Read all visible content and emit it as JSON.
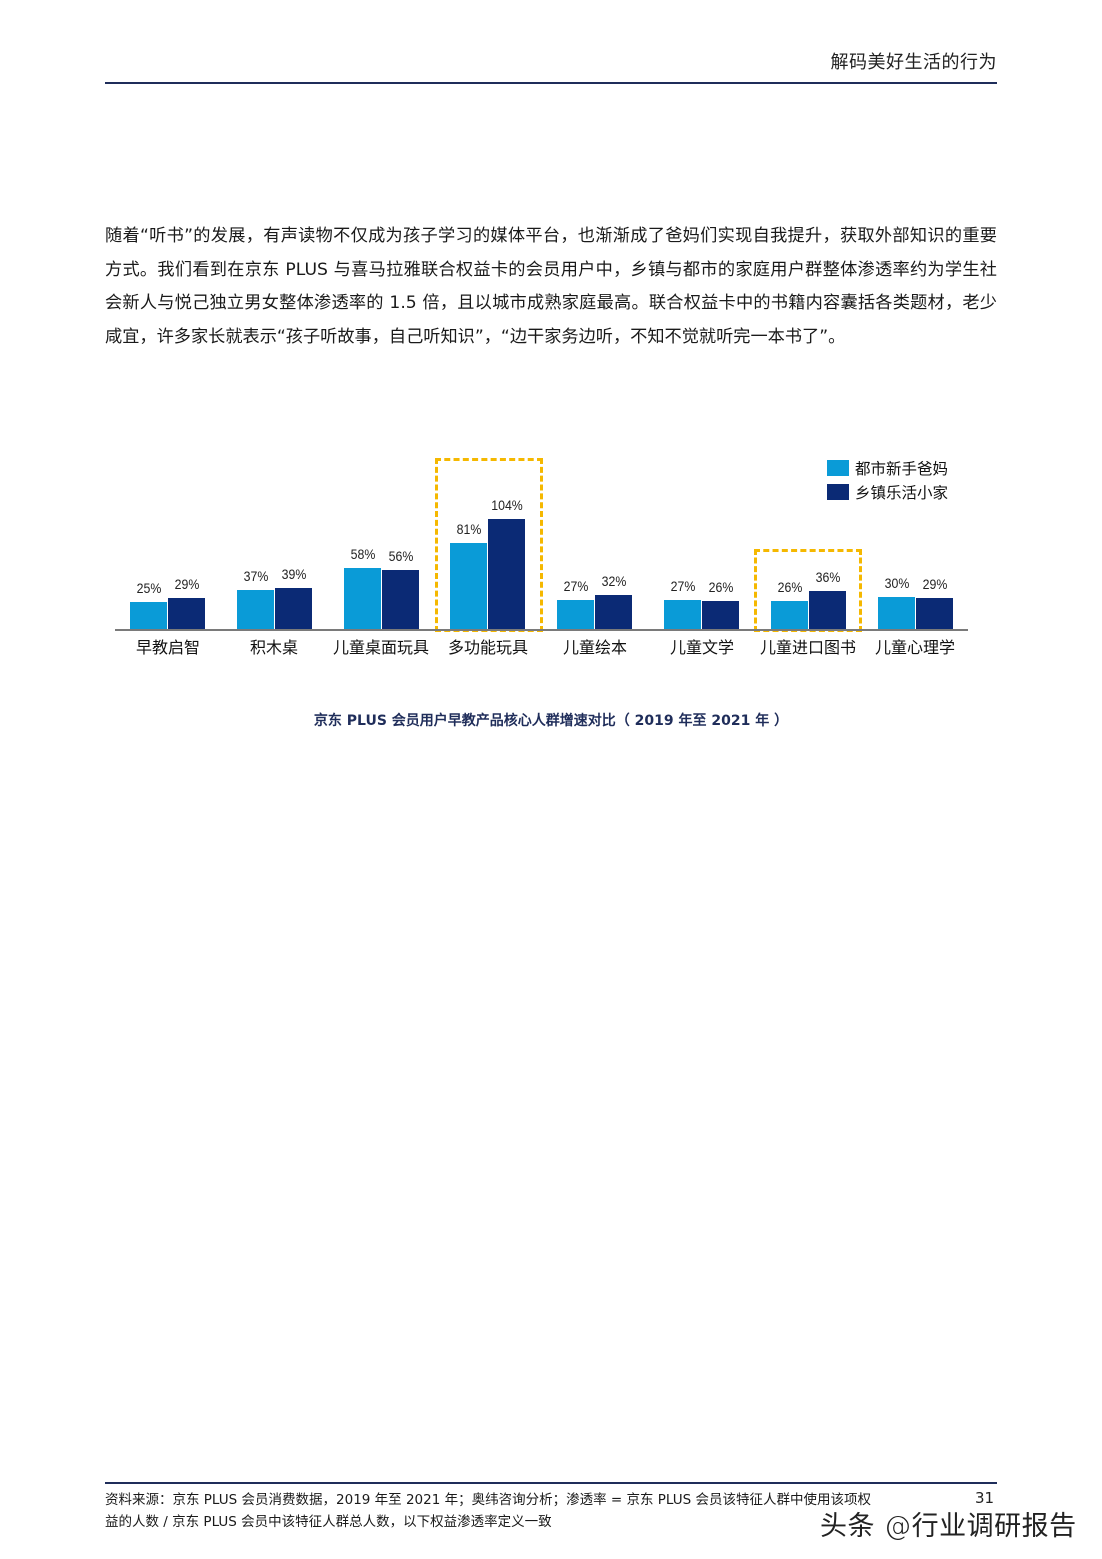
{
  "header": {
    "title": "解码美好生活的行为"
  },
  "body": {
    "paragraph": "随着“听书”的发展，有声读物不仅成为孩子学习的媒体平台，也渐渐成了爸妈们实现自我提升，获取外部知识的重要方式。我们看到在京东 PLUS 与喜马拉雅联合权益卡的会员用户中，乡镇与都市的家庭用户群整体渗透率约为学生社会新人与悦己独立男女整体渗透率的 1.5 倍，且以城市成熟家庭最高。联合权益卡中的书籍内容囊括各类题材，老少咸宜，许多家长就表示“孩子听故事，自己听知识”，“边干家务边听，不知不觉就听完一本书了”。"
  },
  "chart_data": {
    "type": "bar",
    "title": "京东 PLUS 会员用户早教产品核心人群增速对比（2019 年至 2021 年）",
    "xlabel": "",
    "ylabel": "",
    "categories": [
      "早教启智",
      "积木桌",
      "儿童桌面玩具",
      "多功能玩具",
      "儿童绘本",
      "儿童文学",
      "儿童进口图书",
      "儿童心理学"
    ],
    "series": [
      {
        "name": "都市新手爸妈",
        "color": "#0a9bd7",
        "values": [
          25,
          37,
          58,
          81,
          27,
          27,
          26,
          30
        ],
        "labels": [
          "25%",
          "37%",
          "58%",
          "81%",
          "27%",
          "27%",
          "26%",
          "30%"
        ]
      },
      {
        "name": "乡镇乐活小家",
        "color": "#0b2a75",
        "values": [
          29,
          39,
          56,
          104,
          32,
          26,
          36,
          29
        ],
        "labels": [
          "29%",
          "39%",
          "56%",
          "104%",
          "32%",
          "26%",
          "36%",
          "29%"
        ]
      }
    ],
    "highlighted_categories": [
      "多功能玩具",
      "儿童进口图书"
    ],
    "highlight_color": "#f5b800",
    "grid": false,
    "legend_position": "top-right",
    "ylim": [
      0,
      110
    ]
  },
  "chart": {
    "legend": [
      {
        "label": "都市新手爸妈",
        "color": "#0a9bd7"
      },
      {
        "label": "乡镇乐活小家",
        "color": "#0b2a75"
      }
    ],
    "caption": "京东 PLUS 会员用户早教产品核心人群增速对比（ 2019 年至 2021 年 ）"
  },
  "footer": {
    "source_line1": "资料来源：京东 PLUS 会员消费数据，2019 年至 2021 年；奥纬咨询分析；渗透率 = 京东 PLUS 会员该特征人群中使用该项权",
    "source_line2": "益的人数 / 京东 PLUS 会员中该特征人群总人数，以下权益渗透率定义一致",
    "page_number": "31",
    "watermark": "头条 @行业调研报告"
  }
}
